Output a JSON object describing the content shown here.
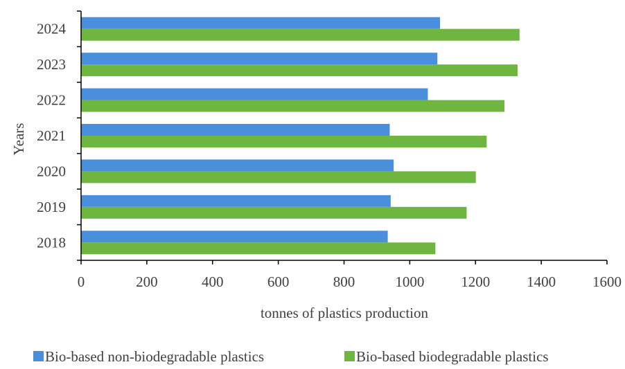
{
  "colors": {
    "non_biodegradable": "#4a8fdc",
    "biodegradable": "#6fb640",
    "axis": "#000000",
    "text": "#404040"
  },
  "chart_data": {
    "type": "bar",
    "orientation": "horizontal",
    "categories": [
      "2018",
      "2019",
      "2020",
      "2021",
      "2022",
      "2023",
      "2024"
    ],
    "series": [
      {
        "name": "Bio-based non-biodegradable plastics",
        "values": [
          933,
          942,
          951,
          939,
          1055,
          1084,
          1092
        ]
      },
      {
        "name": "Bio-based biodegradable plastics",
        "values": [
          1078,
          1173,
          1201,
          1234,
          1288,
          1328,
          1334
        ]
      }
    ],
    "xlabel": "tonnes of plastics production",
    "ylabel": "Years",
    "xlim": [
      0,
      1600
    ],
    "xticks": [
      "0",
      "200",
      "400",
      "600",
      "800",
      "1000",
      "1200",
      "1400",
      "1600"
    ],
    "grid": false,
    "legend_position": "bottom"
  }
}
